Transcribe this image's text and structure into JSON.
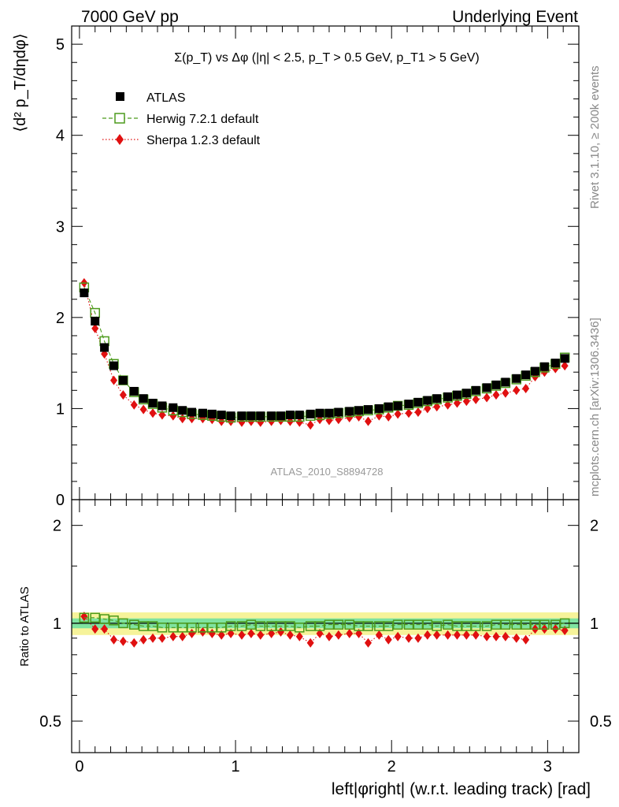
{
  "header": {
    "left": "7000 GeV pp",
    "right": "Underlying Event"
  },
  "side_labels": {
    "rivet": "Rivet 3.1.10, ≥ 200k events",
    "mcplots": "mcplots.cern.ch [arXiv:1306.3436]"
  },
  "watermark": "ATLAS_2010_S8894728",
  "chart_data": [
    {
      "type": "scatter",
      "panel": "main",
      "title": "Σ(p_T) vs Δφ (|η| < 2.5, p_T > 0.5 GeV, p_T1 > 5 GeV)",
      "ylabel": "⟨d² p_T/dηdφ⟩",
      "xlabel": "left|φright| (w.r.t. leading track) [rad]",
      "xlim": [
        -0.05,
        3.2
      ],
      "ylim": [
        0,
        5.2
      ],
      "xticks": [
        "0",
        "1",
        "2",
        "3"
      ],
      "yticks": [
        "0",
        "1",
        "2",
        "3",
        "4",
        "5"
      ],
      "legend_placement": "top-left",
      "x": [
        0.03,
        0.1,
        0.16,
        0.22,
        0.28,
        0.35,
        0.41,
        0.47,
        0.53,
        0.6,
        0.66,
        0.72,
        0.79,
        0.85,
        0.91,
        0.97,
        1.04,
        1.1,
        1.16,
        1.23,
        1.29,
        1.35,
        1.41,
        1.48,
        1.54,
        1.6,
        1.66,
        1.73,
        1.79,
        1.85,
        1.92,
        1.98,
        2.04,
        2.11,
        2.17,
        2.23,
        2.29,
        2.36,
        2.42,
        2.48,
        2.54,
        2.61,
        2.67,
        2.73,
        2.8,
        2.86,
        2.92,
        2.98,
        3.05,
        3.11
      ],
      "series": [
        {
          "name": "ATLAS",
          "marker": "filled-square",
          "color": "#000000",
          "values": [
            2.27,
            1.96,
            1.67,
            1.47,
            1.31,
            1.19,
            1.11,
            1.06,
            1.03,
            1.01,
            0.98,
            0.96,
            0.95,
            0.94,
            0.93,
            0.92,
            0.92,
            0.92,
            0.92,
            0.92,
            0.92,
            0.93,
            0.93,
            0.94,
            0.95,
            0.95,
            0.96,
            0.97,
            0.98,
            0.99,
            1.0,
            1.02,
            1.03,
            1.05,
            1.07,
            1.09,
            1.11,
            1.13,
            1.15,
            1.17,
            1.2,
            1.23,
            1.26,
            1.29,
            1.33,
            1.37,
            1.41,
            1.46,
            1.5,
            1.55
          ]
        },
        {
          "name": "Herwig 7.2.1 default",
          "marker": "open-square",
          "color": "#4c9a1c",
          "values": [
            2.33,
            2.05,
            1.74,
            1.49,
            1.31,
            1.18,
            1.1,
            1.05,
            1.01,
            0.98,
            0.96,
            0.94,
            0.93,
            0.92,
            0.91,
            0.9,
            0.91,
            0.91,
            0.91,
            0.91,
            0.91,
            0.91,
            0.91,
            0.92,
            0.93,
            0.94,
            0.95,
            0.96,
            0.97,
            0.98,
            0.99,
            1.01,
            1.03,
            1.04,
            1.06,
            1.08,
            1.1,
            1.12,
            1.14,
            1.16,
            1.19,
            1.22,
            1.25,
            1.28,
            1.32,
            1.36,
            1.4,
            1.45,
            1.49,
            1.56
          ]
        },
        {
          "name": "Sherpa 1.2.3 default",
          "marker": "filled-diamond",
          "color": "#e01010",
          "values": [
            2.38,
            1.88,
            1.6,
            1.31,
            1.15,
            1.04,
            0.99,
            0.95,
            0.93,
            0.92,
            0.89,
            0.89,
            0.89,
            0.88,
            0.86,
            0.86,
            0.85,
            0.86,
            0.85,
            0.86,
            0.87,
            0.86,
            0.85,
            0.82,
            0.88,
            0.87,
            0.88,
            0.9,
            0.91,
            0.86,
            0.92,
            0.91,
            0.94,
            0.95,
            0.96,
            1.0,
            1.02,
            1.04,
            1.06,
            1.08,
            1.1,
            1.12,
            1.15,
            1.17,
            1.2,
            1.22,
            1.35,
            1.4,
            1.44,
            1.47
          ]
        }
      ]
    },
    {
      "type": "scatter",
      "panel": "ratio",
      "ylabel": "Ratio to ATLAS",
      "xlabel": "left|φright| (w.r.t. leading track) [rad]",
      "ylim": [
        0.4,
        2.4
      ],
      "ylog": true,
      "yticks": [
        "0.5",
        "1",
        "2"
      ],
      "reference_line": 1,
      "band_colors": {
        "stat": "#7fe3a0",
        "total": "#f6f39a"
      },
      "x": [
        0.03,
        0.1,
        0.16,
        0.22,
        0.28,
        0.35,
        0.41,
        0.47,
        0.53,
        0.6,
        0.66,
        0.72,
        0.79,
        0.85,
        0.91,
        0.97,
        1.04,
        1.1,
        1.16,
        1.23,
        1.29,
        1.35,
        1.41,
        1.48,
        1.54,
        1.6,
        1.66,
        1.73,
        1.79,
        1.85,
        1.92,
        1.98,
        2.04,
        2.11,
        2.17,
        2.23,
        2.29,
        2.36,
        2.42,
        2.48,
        2.54,
        2.61,
        2.67,
        2.73,
        2.8,
        2.86,
        2.92,
        2.98,
        3.05,
        3.11
      ],
      "series": [
        {
          "name": "Herwig 7.2.1 default",
          "marker": "open-square",
          "color": "#4c9a1c",
          "values": [
            1.04,
            1.04,
            1.03,
            1.02,
            1.0,
            0.99,
            0.98,
            0.98,
            0.97,
            0.97,
            0.97,
            0.97,
            0.97,
            0.97,
            0.97,
            0.98,
            0.98,
            0.99,
            0.98,
            0.98,
            0.98,
            0.98,
            0.97,
            0.98,
            0.98,
            0.99,
            0.99,
            0.99,
            0.98,
            0.98,
            0.98,
            0.98,
            0.99,
            0.99,
            0.99,
            0.99,
            0.98,
            0.99,
            0.98,
            0.98,
            0.98,
            0.98,
            0.99,
            0.99,
            0.99,
            0.99,
            0.99,
            0.99,
            0.99,
            1.0
          ]
        },
        {
          "name": "Sherpa 1.2.3 default",
          "marker": "filled-diamond",
          "color": "#e01010",
          "values": [
            1.05,
            0.96,
            0.96,
            0.89,
            0.88,
            0.87,
            0.89,
            0.9,
            0.9,
            0.91,
            0.91,
            0.93,
            0.94,
            0.93,
            0.92,
            0.93,
            0.92,
            0.93,
            0.92,
            0.93,
            0.94,
            0.92,
            0.91,
            0.87,
            0.93,
            0.91,
            0.92,
            0.93,
            0.93,
            0.87,
            0.92,
            0.89,
            0.91,
            0.9,
            0.9,
            0.92,
            0.92,
            0.92,
            0.92,
            0.92,
            0.92,
            0.91,
            0.91,
            0.91,
            0.9,
            0.89,
            0.96,
            0.96,
            0.96,
            0.95
          ]
        }
      ]
    }
  ]
}
